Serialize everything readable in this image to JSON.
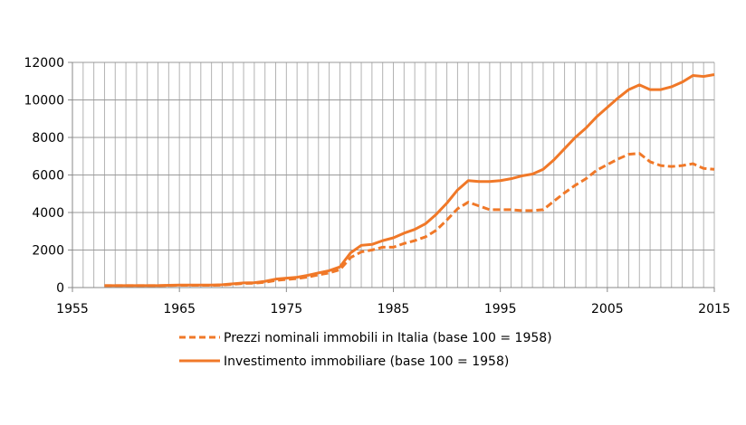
{
  "chart_data": {
    "type": "line",
    "title": "",
    "xlabel": "",
    "ylabel": "",
    "xlim": [
      1955,
      2015
    ],
    "ylim": [
      0,
      12000
    ],
    "xticks": [
      1955,
      1965,
      1975,
      1985,
      1995,
      2005,
      2015
    ],
    "yticks": [
      0,
      2000,
      4000,
      6000,
      8000,
      10000,
      12000
    ],
    "grid": true,
    "legend_position": "bottom",
    "x": [
      1958,
      1959,
      1960,
      1961,
      1962,
      1963,
      1964,
      1965,
      1966,
      1967,
      1968,
      1969,
      1970,
      1971,
      1972,
      1973,
      1974,
      1975,
      1976,
      1977,
      1978,
      1979,
      1980,
      1981,
      1982,
      1983,
      1984,
      1985,
      1986,
      1987,
      1988,
      1989,
      1990,
      1991,
      1992,
      1993,
      1994,
      1995,
      1996,
      1997,
      1998,
      1999,
      2000,
      2001,
      2002,
      2003,
      2004,
      2005,
      2006,
      2007,
      2008,
      2009,
      2010,
      2011,
      2012,
      2013,
      2014,
      2015
    ],
    "series": [
      {
        "name": "Prezzi nominali immobili in Italia (base 100 = 1958)",
        "style": "dashed",
        "color": "#f07828",
        "values": [
          100,
          100,
          100,
          100,
          100,
          100,
          110,
          120,
          120,
          120,
          120,
          130,
          170,
          220,
          230,
          280,
          380,
          430,
          480,
          560,
          680,
          780,
          950,
          1600,
          1900,
          2000,
          2150,
          2150,
          2350,
          2500,
          2700,
          3050,
          3600,
          4200,
          4550,
          4350,
          4150,
          4150,
          4150,
          4100,
          4100,
          4150,
          4600,
          5050,
          5450,
          5800,
          6250,
          6550,
          6850,
          7100,
          7150,
          6700,
          6500,
          6450,
          6500,
          6600,
          6350,
          6300
        ]
      },
      {
        "name": "Investimento immobiliare (base 100 = 1958)",
        "style": "solid",
        "color": "#f07828",
        "values": [
          100,
          100,
          100,
          100,
          100,
          100,
          120,
          130,
          130,
          130,
          130,
          150,
          200,
          250,
          260,
          330,
          450,
          500,
          550,
          650,
          780,
          900,
          1100,
          1850,
          2250,
          2300,
          2500,
          2650,
          2900,
          3100,
          3400,
          3900,
          4500,
          5200,
          5700,
          5650,
          5650,
          5700,
          5800,
          5950,
          6050,
          6300,
          6800,
          7400,
          8000,
          8500,
          9100,
          9600,
          10100,
          10550,
          10800,
          10550,
          10550,
          10700,
          10950,
          11300,
          11250,
          11350
        ]
      }
    ]
  }
}
